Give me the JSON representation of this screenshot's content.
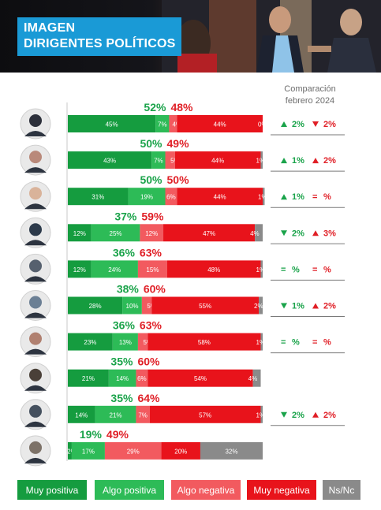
{
  "header": {
    "title_line1": "IMAGEN",
    "title_line2": "DIRIGENTES POLÍTICOS"
  },
  "comparison_header": {
    "line1": "Comparación",
    "line2": "febrero 2024"
  },
  "colors": {
    "muy_positiva": "#159c3f",
    "algo_positiva": "#2dbb57",
    "algo_negativa": "#f25a5f",
    "muy_negativa": "#e8131b",
    "ns_nc": "#8a8a8a",
    "positive_text": "#1aa34a",
    "negative_text": "#e01f26"
  },
  "legend": [
    {
      "label": "Muy positiva",
      "color": "#159c3f"
    },
    {
      "label": "Algo positiva",
      "color": "#2dbb57"
    },
    {
      "label": "Algo negativa",
      "color": "#f25a5f"
    },
    {
      "label": "Muy negativa",
      "color": "#e8131b"
    },
    {
      "label": "Ns/Nc",
      "color": "#8a8a8a"
    }
  ],
  "chart_data": {
    "type": "bar",
    "orientation": "horizontal-stacked-100",
    "title": "IMAGEN DIRIGENTES POLÍTICOS",
    "series_names": [
      "Muy positiva",
      "Algo positiva",
      "Algo negativa",
      "Muy negativa",
      "Ns/Nc"
    ],
    "rows": [
      {
        "segments": [
          45,
          7,
          4,
          44,
          0
        ],
        "labels": [
          "45%",
          "7%",
          "4%",
          "44%",
          "0%"
        ],
        "positive_total": "52%",
        "negative_total": "48%",
        "comparison": {
          "pos_arrow": "up",
          "pos_text": "2%",
          "neg_arrow": "down",
          "neg_text": "2%"
        }
      },
      {
        "segments": [
          43,
          7,
          5,
          44,
          1
        ],
        "labels": [
          "43%",
          "7%",
          "5%",
          "44%",
          "1%"
        ],
        "positive_total": "50%",
        "negative_total": "49%",
        "comparison": {
          "pos_arrow": "up",
          "pos_text": "1%",
          "neg_arrow": "up",
          "neg_text": "2%"
        }
      },
      {
        "segments": [
          31,
          19,
          6,
          44,
          1
        ],
        "labels": [
          "31%",
          "19%",
          "6%",
          "44%",
          "1%"
        ],
        "positive_total": "50%",
        "negative_total": "50%",
        "comparison": {
          "pos_arrow": "up",
          "pos_text": "1%",
          "neg_arrow": "equal",
          "neg_text": "%"
        }
      },
      {
        "segments": [
          12,
          25,
          12,
          47,
          4
        ],
        "labels": [
          "12%",
          "25%",
          "12%",
          "47%",
          "4%"
        ],
        "positive_total": "37%",
        "negative_total": "59%",
        "comparison": {
          "pos_arrow": "down",
          "pos_text": "2%",
          "neg_arrow": "up",
          "neg_text": "3%"
        }
      },
      {
        "segments": [
          12,
          24,
          15,
          48,
          1
        ],
        "labels": [
          "12%",
          "24%",
          "15%",
          "48%",
          "1%"
        ],
        "positive_total": "36%",
        "negative_total": "63%",
        "comparison": {
          "pos_arrow": "equal",
          "pos_text": "%",
          "neg_arrow": "equal",
          "neg_text": "%"
        }
      },
      {
        "segments": [
          28,
          10,
          5,
          55,
          2
        ],
        "labels": [
          "28%",
          "10%",
          "5%",
          "55%",
          "2%"
        ],
        "positive_total": "38%",
        "negative_total": "60%",
        "comparison": {
          "pos_arrow": "down",
          "pos_text": "1%",
          "neg_arrow": "up",
          "neg_text": "2%"
        }
      },
      {
        "segments": [
          23,
          13,
          5,
          58,
          1
        ],
        "labels": [
          "23%",
          "13%",
          "5%",
          "58%",
          "1%"
        ],
        "positive_total": "36%",
        "negative_total": "63%",
        "comparison": {
          "pos_arrow": "equal",
          "pos_text": "%",
          "neg_arrow": "equal",
          "neg_text": "%"
        }
      },
      {
        "segments": [
          21,
          14,
          6,
          54,
          4
        ],
        "labels": [
          "21%",
          "14%",
          "6%",
          "54%",
          "4%"
        ],
        "positive_total": "35%",
        "negative_total": "60%",
        "comparison": null
      },
      {
        "segments": [
          14,
          21,
          7,
          57,
          1
        ],
        "labels": [
          "14%",
          "21%",
          "7%",
          "57%",
          "1%"
        ],
        "positive_total": "35%",
        "negative_total": "64%",
        "comparison": {
          "pos_arrow": "down",
          "pos_text": "2%",
          "neg_arrow": "up",
          "neg_text": "2%"
        }
      },
      {
        "segments": [
          2,
          17,
          29,
          20,
          32
        ],
        "labels": [
          "2%",
          "17%",
          "29%",
          "20%",
          "32%"
        ],
        "positive_total": "19%",
        "negative_total": "49%",
        "comparison": null
      }
    ]
  }
}
